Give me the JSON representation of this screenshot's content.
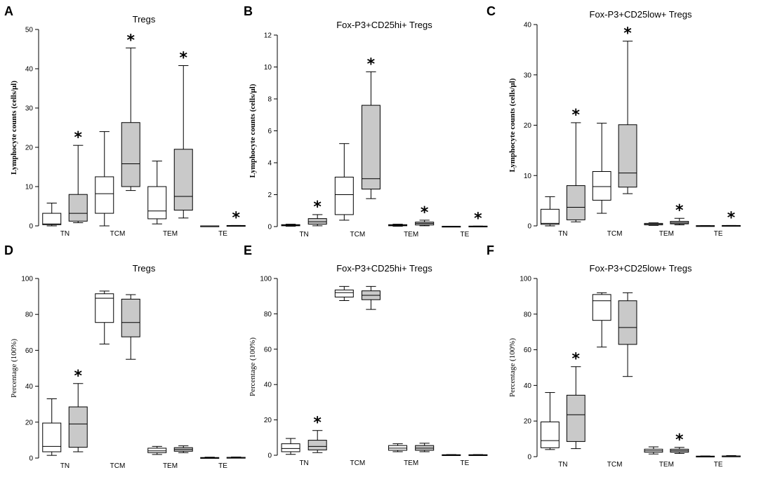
{
  "figure": {
    "colors": {
      "open": "#ffffff",
      "shaded": "#c9c9c9",
      "stroke": "#000000"
    }
  },
  "chart_data": [
    {
      "id": "A",
      "type": "boxplot",
      "title": "Tregs",
      "ylabel": "Lymphocyte counts (cells/μl)",
      "ylabel_bold": true,
      "ylim": [
        0,
        50
      ],
      "yticks": [
        0,
        10,
        20,
        30,
        40,
        50
      ],
      "categories": [
        {
          "label": "TN",
          "x": 1.5
        },
        {
          "label": "TCM",
          "x": 3.5
        },
        {
          "label": "TEM",
          "x": 5.5
        },
        {
          "label": "TE",
          "x": 7.5
        }
      ],
      "boxes": [
        {
          "x": 1,
          "fill": "open",
          "min": 0,
          "q1": 0.3,
          "median": 0.5,
          "q3": 3.2,
          "max": 5.8,
          "star": false
        },
        {
          "x": 2,
          "fill": "shaded",
          "min": 0.8,
          "q1": 1.2,
          "median": 3.2,
          "q3": 8,
          "max": 20.5,
          "star": true
        },
        {
          "x": 3,
          "fill": "open",
          "min": 0,
          "q1": 3.2,
          "median": 8.2,
          "q3": 12.5,
          "max": 24,
          "star": false
        },
        {
          "x": 4,
          "fill": "shaded",
          "min": 9,
          "q1": 10,
          "median": 15.8,
          "q3": 26.3,
          "max": 45.3,
          "star": true
        },
        {
          "x": 5,
          "fill": "open",
          "min": 0.5,
          "q1": 1.8,
          "median": 3.8,
          "q3": 10,
          "max": 16.5,
          "star": false
        },
        {
          "x": 6,
          "fill": "shaded",
          "min": 2,
          "q1": 4,
          "median": 7.5,
          "q3": 19.5,
          "max": 40.8,
          "star": true
        },
        {
          "x": 7,
          "fill": "open",
          "min": 0,
          "q1": 0,
          "median": 0,
          "q3": 0,
          "max": 0,
          "star": false
        },
        {
          "x": 8,
          "fill": "shaded",
          "min": 0,
          "q1": 0,
          "median": 0.05,
          "q3": 0.1,
          "max": 0.1,
          "star": true
        }
      ]
    },
    {
      "id": "B",
      "type": "boxplot",
      "title": "Fox-P3+CD25hi+ Tregs",
      "ylabel": "Lymphocyte counts (cells/μl)",
      "ylabel_bold": true,
      "ylim": [
        0,
        12
      ],
      "yticks": [
        0,
        2,
        4,
        6,
        8,
        10,
        12
      ],
      "categories": [
        {
          "label": "TN",
          "x": 1.5
        },
        {
          "label": "TCM",
          "x": 3.5
        },
        {
          "label": "TEM",
          "x": 5.5
        },
        {
          "label": "TE",
          "x": 7.5
        }
      ],
      "boxes": [
        {
          "x": 1,
          "fill": "open",
          "min": 0.02,
          "q1": 0.05,
          "median": 0.08,
          "q3": 0.12,
          "max": 0.15,
          "star": false
        },
        {
          "x": 2,
          "fill": "shaded",
          "min": 0.05,
          "q1": 0.15,
          "median": 0.3,
          "q3": 0.5,
          "max": 0.75,
          "star": true
        },
        {
          "x": 3,
          "fill": "open",
          "min": 0.4,
          "q1": 0.75,
          "median": 2.0,
          "q3": 3.1,
          "max": 5.2,
          "star": false
        },
        {
          "x": 4,
          "fill": "shaded",
          "min": 1.75,
          "q1": 2.35,
          "median": 3.0,
          "q3": 7.6,
          "max": 9.7,
          "star": true
        },
        {
          "x": 5,
          "fill": "open",
          "min": 0.02,
          "q1": 0.05,
          "median": 0.08,
          "q3": 0.12,
          "max": 0.15,
          "star": false
        },
        {
          "x": 6,
          "fill": "shaded",
          "min": 0.05,
          "q1": 0.1,
          "median": 0.2,
          "q3": 0.28,
          "max": 0.4,
          "star": true
        },
        {
          "x": 7,
          "fill": "open",
          "min": 0,
          "q1": 0,
          "median": 0.01,
          "q3": 0.02,
          "max": 0.02,
          "star": false
        },
        {
          "x": 8,
          "fill": "shaded",
          "min": 0,
          "q1": 0.01,
          "median": 0.02,
          "q3": 0.03,
          "max": 0.03,
          "star": true
        }
      ]
    },
    {
      "id": "C",
      "type": "boxplot",
      "title": "Fox-P3+CD25low+ Tregs",
      "ylabel": "Lymphocyte counts (cells/μl)",
      "ylabel_bold": true,
      "ylim": [
        0,
        40
      ],
      "yticks": [
        0,
        10,
        20,
        30,
        40
      ],
      "categories": [
        {
          "label": "TN",
          "x": 1.5
        },
        {
          "label": "TCM",
          "x": 3.5
        },
        {
          "label": "TEM",
          "x": 5.5
        },
        {
          "label": "TE",
          "x": 7.5
        }
      ],
      "boxes": [
        {
          "x": 1,
          "fill": "open",
          "min": 0,
          "q1": 0.3,
          "median": 0.5,
          "q3": 3.3,
          "max": 5.8,
          "star": false
        },
        {
          "x": 2,
          "fill": "shaded",
          "min": 0.8,
          "q1": 1.2,
          "median": 3.7,
          "q3": 8,
          "max": 20.5,
          "star": true
        },
        {
          "x": 3,
          "fill": "open",
          "min": 2.5,
          "q1": 5.1,
          "median": 7.8,
          "q3": 10.8,
          "max": 20.4,
          "star": false
        },
        {
          "x": 4,
          "fill": "shaded",
          "min": 6.4,
          "q1": 7.7,
          "median": 10.5,
          "q3": 20.1,
          "max": 36.7,
          "star": true
        },
        {
          "x": 5,
          "fill": "open",
          "min": 0.1,
          "q1": 0.2,
          "median": 0.3,
          "q3": 0.5,
          "max": 0.6,
          "star": false
        },
        {
          "x": 6,
          "fill": "shaded",
          "min": 0.2,
          "q1": 0.4,
          "median": 0.6,
          "q3": 0.9,
          "max": 1.5,
          "star": true
        },
        {
          "x": 7,
          "fill": "open",
          "min": 0,
          "q1": 0,
          "median": 0,
          "q3": 0.05,
          "max": 0.05,
          "star": false
        },
        {
          "x": 8,
          "fill": "shaded",
          "min": 0,
          "q1": 0.02,
          "median": 0.05,
          "q3": 0.08,
          "max": 0.08,
          "star": true
        }
      ]
    },
    {
      "id": "D",
      "type": "boxplot",
      "title": "Tregs",
      "ylabel": "Percentage (100%)",
      "ylabel_bold": false,
      "ylim": [
        0,
        100
      ],
      "yticks": [
        0,
        20,
        40,
        60,
        80,
        100
      ],
      "categories": [
        {
          "label": "TN",
          "x": 1.5
        },
        {
          "label": "TCM",
          "x": 3.5
        },
        {
          "label": "TEM",
          "x": 5.5
        },
        {
          "label": "TE",
          "x": 7.5
        }
      ],
      "boxes": [
        {
          "x": 1,
          "fill": "open",
          "min": 1.5,
          "q1": 3.5,
          "median": 6.5,
          "q3": 19.5,
          "max": 33,
          "star": false
        },
        {
          "x": 2,
          "fill": "shaded",
          "min": 3.5,
          "q1": 6,
          "median": 19,
          "q3": 28.5,
          "max": 41.5,
          "star": true
        },
        {
          "x": 3,
          "fill": "open",
          "min": 63.5,
          "q1": 75.5,
          "median": 89,
          "q3": 91.5,
          "max": 93,
          "star": false
        },
        {
          "x": 4,
          "fill": "shaded",
          "min": 55,
          "q1": 67.5,
          "median": 75.5,
          "q3": 88.5,
          "max": 91,
          "star": false
        },
        {
          "x": 5,
          "fill": "open",
          "min": 2,
          "q1": 3,
          "median": 4,
          "q3": 5.5,
          "max": 6.5,
          "star": false
        },
        {
          "x": 6,
          "fill": "shaded",
          "min": 3,
          "q1": 3.8,
          "median": 4.8,
          "q3": 5.8,
          "max": 6.8,
          "star": false
        },
        {
          "x": 7,
          "fill": "open",
          "min": 0,
          "q1": 0.1,
          "median": 0.2,
          "q3": 0.3,
          "max": 0.5,
          "star": false
        },
        {
          "x": 8,
          "fill": "shaded",
          "min": 0,
          "q1": 0.1,
          "median": 0.3,
          "q3": 0.4,
          "max": 0.6,
          "star": false
        }
      ]
    },
    {
      "id": "E",
      "type": "boxplot",
      "title": "Fox-P3+CD25hi+ Tregs",
      "ylabel": "Percentage (100%)",
      "ylabel_bold": false,
      "ylim": [
        0,
        100
      ],
      "yticks": [
        0,
        20,
        40,
        60,
        80,
        100
      ],
      "categories": [
        {
          "label": "TN",
          "x": 1.5
        },
        {
          "label": "TCM",
          "x": 3.5
        },
        {
          "label": "TEM",
          "x": 5.5
        },
        {
          "label": "TE",
          "x": 7.5
        }
      ],
      "boxes": [
        {
          "x": 1,
          "fill": "open",
          "min": 0.5,
          "q1": 2,
          "median": 3.8,
          "q3": 6.5,
          "max": 9.5,
          "star": false
        },
        {
          "x": 2,
          "fill": "shaded",
          "min": 1.5,
          "q1": 3,
          "median": 5,
          "q3": 8.5,
          "max": 14,
          "star": true
        },
        {
          "x": 3,
          "fill": "open",
          "min": 87.5,
          "q1": 89.5,
          "median": 92,
          "q3": 93.5,
          "max": 95.5,
          "star": false
        },
        {
          "x": 4,
          "fill": "shaded",
          "min": 82.5,
          "q1": 88,
          "median": 90.5,
          "q3": 93,
          "max": 95.5,
          "star": false
        },
        {
          "x": 5,
          "fill": "open",
          "min": 2,
          "q1": 2.8,
          "median": 4,
          "q3": 5.5,
          "max": 6.5,
          "star": false
        },
        {
          "x": 6,
          "fill": "shaded",
          "min": 2,
          "q1": 2.8,
          "median": 4,
          "q3": 5.5,
          "max": 6.8,
          "star": false
        },
        {
          "x": 7,
          "fill": "open",
          "min": 0,
          "q1": 0.1,
          "median": 0.2,
          "q3": 0.3,
          "max": 0.4,
          "star": false
        },
        {
          "x": 8,
          "fill": "shaded",
          "min": 0,
          "q1": 0.1,
          "median": 0.2,
          "q3": 0.3,
          "max": 0.4,
          "star": false
        }
      ]
    },
    {
      "id": "F",
      "type": "boxplot",
      "title": "Fox-P3+CD25low+ Tregs",
      "ylabel": "Percentage (100%)",
      "ylabel_bold": false,
      "ylim": [
        0,
        100
      ],
      "yticks": [
        0,
        20,
        40,
        60,
        80,
        100
      ],
      "categories": [
        {
          "label": "TN",
          "x": 1.5
        },
        {
          "label": "TCM",
          "x": 3.5
        },
        {
          "label": "TEM",
          "x": 5.5
        },
        {
          "label": "TE",
          "x": 7.5
        }
      ],
      "boxes": [
        {
          "x": 1,
          "fill": "open",
          "min": 4,
          "q1": 5,
          "median": 9,
          "q3": 19.5,
          "max": 36,
          "star": false
        },
        {
          "x": 2,
          "fill": "shaded",
          "min": 4.5,
          "q1": 8.5,
          "median": 23.5,
          "q3": 34.5,
          "max": 50.5,
          "star": true
        },
        {
          "x": 3,
          "fill": "open",
          "min": 61.5,
          "q1": 76.5,
          "median": 87.5,
          "q3": 91,
          "max": 92,
          "star": false
        },
        {
          "x": 4,
          "fill": "shaded",
          "min": 45,
          "q1": 63,
          "median": 72.5,
          "q3": 87.5,
          "max": 92,
          "star": false
        },
        {
          "x": 5,
          "fill": "open",
          "min": 1.5,
          "q1": 2.5,
          "median": 3.3,
          "q3": 4.2,
          "max": 5.5,
          "star": false
        },
        {
          "x": 6,
          "fill": "shaded",
          "min": 1.8,
          "q1": 2.5,
          "median": 3.3,
          "q3": 4.2,
          "max": 5.2,
          "star": true
        },
        {
          "x": 7,
          "fill": "open",
          "min": 0,
          "q1": 0.1,
          "median": 0.2,
          "q3": 0.3,
          "max": 0.4,
          "star": false
        },
        {
          "x": 8,
          "fill": "shaded",
          "min": 0,
          "q1": 0.1,
          "median": 0.3,
          "q3": 0.4,
          "max": 0.6,
          "star": false
        }
      ]
    }
  ]
}
